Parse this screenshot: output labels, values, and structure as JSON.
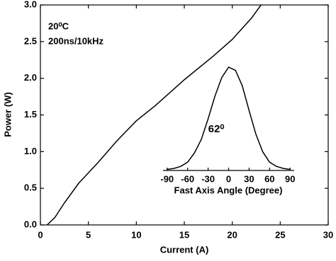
{
  "chart_data": [
    {
      "type": "line",
      "x_label": "Current (A)",
      "y_label": "Power (W)",
      "annotations": [
        "20⁰C",
        "200ns/10kHz"
      ],
      "x": [
        0.7,
        1.5,
        2.5,
        4,
        6,
        8,
        10,
        12,
        15,
        18,
        20,
        22,
        23
      ],
      "values": [
        0,
        0.1,
        0.3,
        0.57,
        0.85,
        1.15,
        1.42,
        1.63,
        1.98,
        2.3,
        2.53,
        2.82,
        3.0
      ],
      "color": "#000000",
      "xlim": [
        0,
        30
      ],
      "xticks": [
        0,
        5,
        10,
        15,
        20,
        25,
        30
      ],
      "ylim": [
        0,
        3
      ],
      "yticks": [
        {
          "value": 0,
          "label": "0.0"
        },
        {
          "value": 0.5,
          "label": "0.5"
        },
        {
          "value": 1,
          "label": "1.0"
        },
        {
          "value": 1.5,
          "label": "1.5"
        },
        {
          "value": 2,
          "label": "2.0"
        },
        {
          "value": 2.5,
          "label": "2.5"
        },
        {
          "value": 3,
          "label": "3.0"
        }
      ]
    },
    {
      "type": "line",
      "x_label": "Fast Axis Angle (Degree)",
      "annotations": [
        "62⁰"
      ],
      "x": [
        -90,
        -80,
        -70,
        -60,
        -50,
        -40,
        -30,
        -20,
        -10,
        0,
        10,
        20,
        30,
        40,
        50,
        60,
        70,
        80,
        90
      ],
      "values": [
        0.01,
        0.02,
        0.04,
        0.08,
        0.17,
        0.3,
        0.5,
        0.72,
        0.9,
        1.0,
        0.97,
        0.82,
        0.58,
        0.35,
        0.18,
        0.08,
        0.04,
        0.02,
        0.01
      ],
      "color": "#000000",
      "xlim": [
        -96,
        96
      ],
      "xticks": [
        -90,
        -60,
        -30,
        0,
        30,
        60,
        90
      ],
      "ylim": [
        0,
        1
      ]
    }
  ]
}
